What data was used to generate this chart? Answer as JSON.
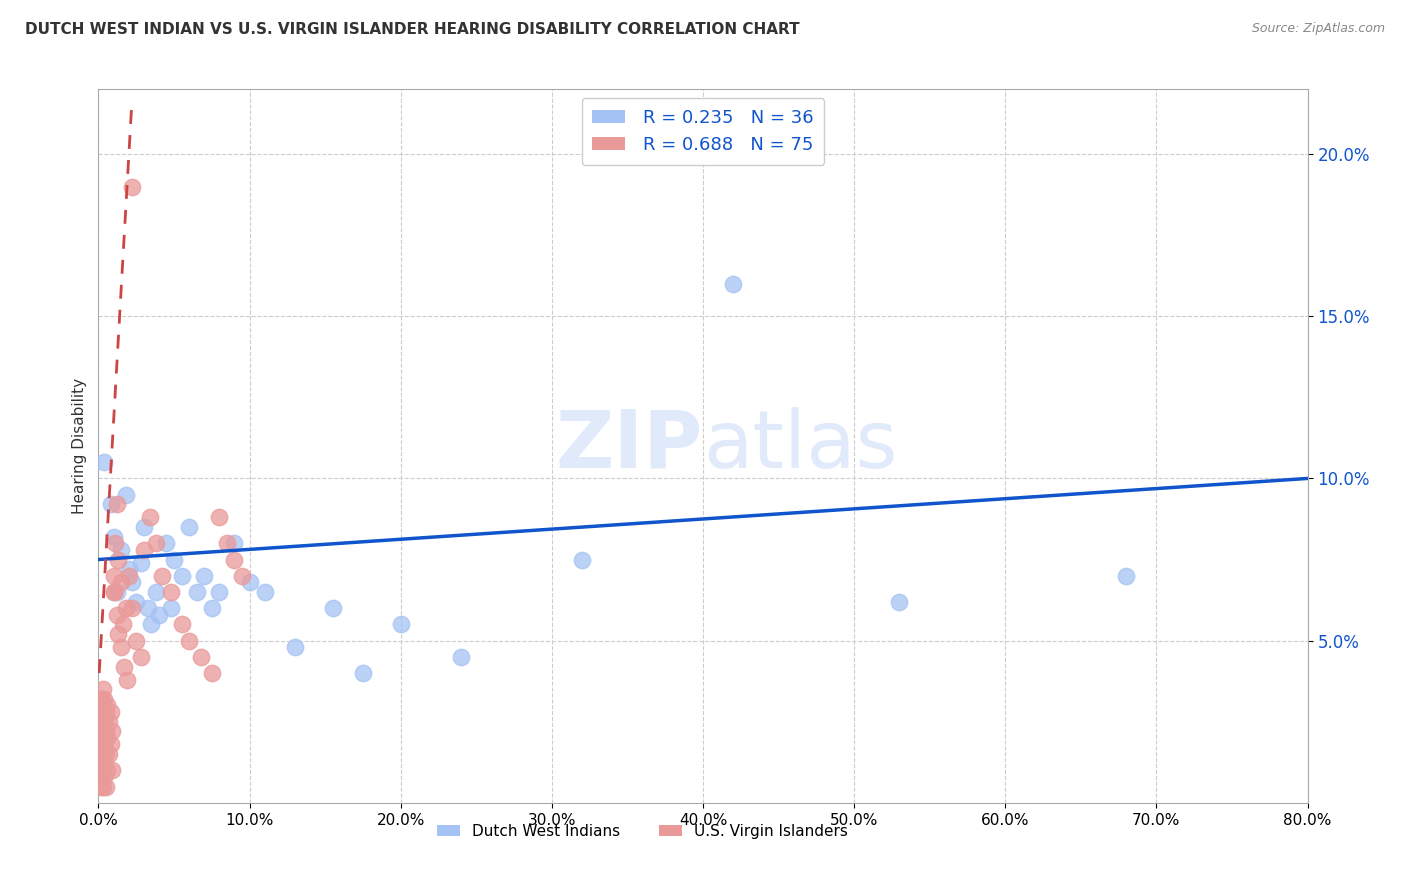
{
  "title": "DUTCH WEST INDIAN VS U.S. VIRGIN ISLANDER HEARING DISABILITY CORRELATION CHART",
  "source": "Source: ZipAtlas.com",
  "ylabel": "Hearing Disability",
  "legend_r_n": [
    {
      "R": "0.235",
      "N": "36"
    },
    {
      "R": "0.688",
      "N": "75"
    }
  ],
  "blue_color": "#a4c2f4",
  "pink_color": "#ea9999",
  "blue_line_color": "#1155cc",
  "pink_line_color": "#cc4444",
  "watermark_color": "#c9daf8",
  "xlim": [
    0,
    0.8
  ],
  "ylim": [
    0,
    0.22
  ],
  "xticks": [
    0.0,
    0.1,
    0.2,
    0.3,
    0.4,
    0.5,
    0.6,
    0.7,
    0.8
  ],
  "yticks": [
    0.05,
    0.1,
    0.15,
    0.2
  ],
  "blue_x": [
    0.004,
    0.008,
    0.01,
    0.012,
    0.015,
    0.018,
    0.02,
    0.022,
    0.025,
    0.028,
    0.03,
    0.033,
    0.035,
    0.038,
    0.04,
    0.045,
    0.048,
    0.05,
    0.055,
    0.06,
    0.065,
    0.07,
    0.075,
    0.08,
    0.09,
    0.1,
    0.11,
    0.13,
    0.155,
    0.175,
    0.2,
    0.24,
    0.32,
    0.42,
    0.53,
    0.68
  ],
  "blue_y": [
    0.105,
    0.092,
    0.082,
    0.065,
    0.078,
    0.095,
    0.072,
    0.068,
    0.062,
    0.074,
    0.085,
    0.06,
    0.055,
    0.065,
    0.058,
    0.08,
    0.06,
    0.075,
    0.07,
    0.085,
    0.065,
    0.07,
    0.06,
    0.065,
    0.08,
    0.068,
    0.065,
    0.048,
    0.06,
    0.04,
    0.055,
    0.045,
    0.075,
    0.16,
    0.062,
    0.07
  ],
  "pink_x": [
    0.0005,
    0.0005,
    0.0005,
    0.0005,
    0.001,
    0.001,
    0.001,
    0.001,
    0.001,
    0.001,
    0.0015,
    0.0015,
    0.002,
    0.002,
    0.002,
    0.002,
    0.002,
    0.002,
    0.003,
    0.003,
    0.003,
    0.003,
    0.003,
    0.003,
    0.003,
    0.004,
    0.004,
    0.004,
    0.004,
    0.004,
    0.005,
    0.005,
    0.005,
    0.005,
    0.006,
    0.006,
    0.006,
    0.007,
    0.007,
    0.008,
    0.008,
    0.009,
    0.009,
    0.01,
    0.01,
    0.011,
    0.012,
    0.013,
    0.015,
    0.016,
    0.018,
    0.02,
    0.022,
    0.025,
    0.028,
    0.03,
    0.034,
    0.038,
    0.042,
    0.048,
    0.055,
    0.06,
    0.068,
    0.075,
    0.08,
    0.085,
    0.09,
    0.095,
    0.01,
    0.012,
    0.013,
    0.015,
    0.017,
    0.019,
    0.022
  ],
  "pink_y": [
    0.01,
    0.015,
    0.02,
    0.025,
    0.008,
    0.012,
    0.018,
    0.022,
    0.028,
    0.032,
    0.015,
    0.025,
    0.01,
    0.015,
    0.02,
    0.028,
    0.032,
    0.005,
    0.01,
    0.015,
    0.02,
    0.025,
    0.03,
    0.035,
    0.005,
    0.012,
    0.018,
    0.025,
    0.032,
    0.008,
    0.015,
    0.022,
    0.028,
    0.005,
    0.01,
    0.02,
    0.03,
    0.015,
    0.025,
    0.018,
    0.028,
    0.01,
    0.022,
    0.065,
    0.07,
    0.08,
    0.092,
    0.075,
    0.068,
    0.055,
    0.06,
    0.07,
    0.06,
    0.05,
    0.045,
    0.078,
    0.088,
    0.08,
    0.07,
    0.065,
    0.055,
    0.05,
    0.045,
    0.04,
    0.088,
    0.08,
    0.075,
    0.07,
    0.065,
    0.058,
    0.052,
    0.048,
    0.042,
    0.038,
    0.19
  ]
}
